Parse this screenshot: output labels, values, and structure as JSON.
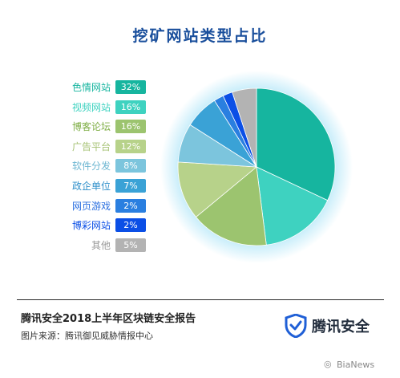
{
  "chart_data": {
    "type": "pie",
    "title": "挖矿网站类型占比",
    "categories": [
      "色情网站",
      "视频网站",
      "博客论坛",
      "广告平台",
      "软件分发",
      "政企单位",
      "网页游戏",
      "博彩网站",
      "其他"
    ],
    "values": [
      32,
      16,
      16,
      12,
      8,
      7,
      2,
      2,
      5
    ],
    "value_labels": [
      "32%",
      "16%",
      "16%",
      "12%",
      "8%",
      "7%",
      "2%",
      "2%",
      "5%"
    ],
    "colors": [
      "#16b59f",
      "#3ed2c0",
      "#9cc46f",
      "#b7d28a",
      "#7cc5dd",
      "#3aa2d6",
      "#2a7fe0",
      "#0b4fe6",
      "#b3b3b3"
    ],
    "label_colors": [
      "#16b59f",
      "#3ed2c0",
      "#7fae46",
      "#a6c274",
      "#6cb6d1",
      "#2e8fca",
      "#2a6fe0",
      "#0b4fe6",
      "#999999"
    ],
    "legend_placement": "left"
  },
  "footer": {
    "report_title": "腾讯安全2018上半年区块链安全报告",
    "source": "图片来源：腾讯御见威胁情报中心",
    "brand_name": "腾讯安全"
  },
  "watermark": {
    "text": "BiaNews"
  },
  "icons": {
    "brand_logo": "shield-check-icon",
    "watermark_logo": "wechat-icon"
  }
}
